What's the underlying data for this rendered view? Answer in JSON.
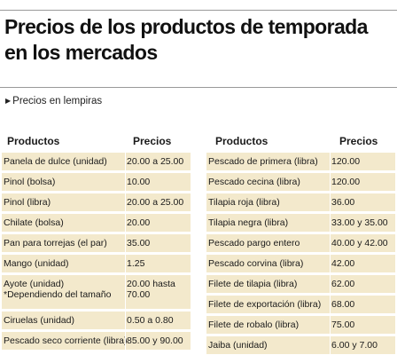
{
  "title": "Precios de los productos de temporada en los mercados",
  "subtitle": "Precios en lempiras",
  "subtitle_icon": "triangle-right-icon",
  "left_table": {
    "header_product": "Productos",
    "header_price": "Precios",
    "rows": [
      {
        "name": "Panela de dulce (unidad)",
        "price": "20.00 a 25.00"
      },
      {
        "name": "Pinol (bolsa)",
        "price": "10.00"
      },
      {
        "name": "Pinol (libra)",
        "price": "20.00 a 25.00"
      },
      {
        "name": "Chilate (bolsa)",
        "price": "20.00"
      },
      {
        "name": "Pan para torrejas (el par)",
        "price": "35.00"
      },
      {
        "name": "Mango (unidad)",
        "price": "1.25"
      },
      {
        "name": "Ayote (unidad)",
        "name2": "*Dependiendo del tamaño",
        "price": "20.00 hasta",
        "price2": "70.00"
      },
      {
        "name": "Ciruelas (unidad)",
        "price": "0.50 a 0.80"
      },
      {
        "name": "Pescado seco corriente (libra)",
        "price": "85.00 y 90.00"
      }
    ]
  },
  "right_table": {
    "header_product": "Productos",
    "header_price": "Precios",
    "rows": [
      {
        "name": "Pescado de primera (libra)",
        "price": "120.00"
      },
      {
        "name": "Pescado cecina (libra)",
        "price": "120.00"
      },
      {
        "name": "Tilapia roja (libra)",
        "price": "36.00"
      },
      {
        "name": "Tilapia negra (libra)",
        "price": "33.00 y 35.00"
      },
      {
        "name": "Pescado pargo entero",
        "price": "40.00 y 42.00"
      },
      {
        "name": "Pescado corvina (libra)",
        "price": "42.00"
      },
      {
        "name": "Filete de tilapia (libra)",
        "price": "62.00"
      },
      {
        "name": "Filete de exportación (libra)",
        "price": "68.00"
      },
      {
        "name": "Filete de robalo (libra)",
        "price": "75.00"
      },
      {
        "name": "Jaiba (unidad)",
        "price": "6.00 y 7.00"
      }
    ]
  },
  "colors": {
    "row_background": "#f3e9cc",
    "rule": "#9a9a9a"
  }
}
